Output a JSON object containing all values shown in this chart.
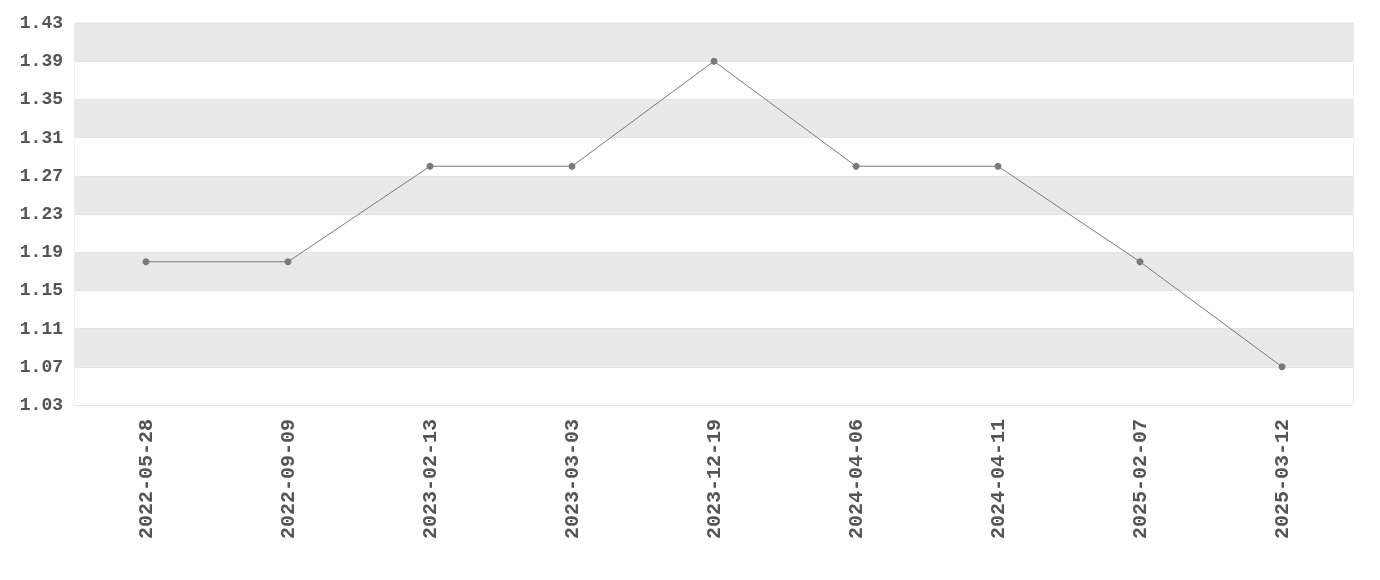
{
  "chart_data": {
    "type": "line",
    "categories": [
      "2022-05-28",
      "2022-09-09",
      "2023-02-13",
      "2023-03-03",
      "2023-12-19",
      "2024-04-06",
      "2024-04-11",
      "2025-02-07",
      "2025-03-12"
    ],
    "series": [
      {
        "color": "#7a7a7a",
        "values": [
          1.18,
          1.18,
          1.28,
          1.28,
          1.39,
          1.28,
          1.28,
          1.18,
          1.07
        ]
      }
    ],
    "ylim": [
      1.03,
      1.43
    ],
    "yticks": [
      1.03,
      1.07,
      1.11,
      1.15,
      1.19,
      1.23,
      1.27,
      1.31,
      1.35,
      1.39,
      1.43
    ],
    "grid": "y",
    "marker": "circle",
    "line_style": "solid"
  }
}
